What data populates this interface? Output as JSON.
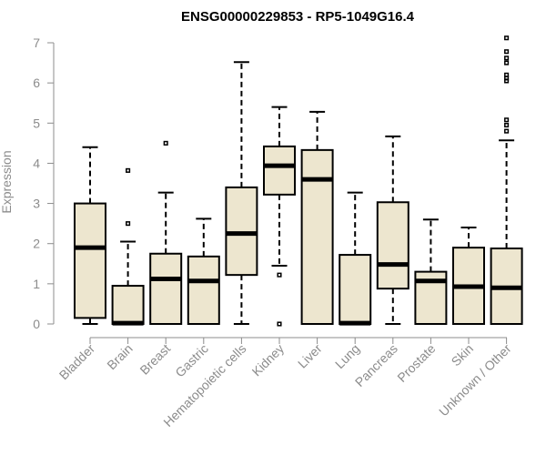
{
  "chart_data": {
    "type": "boxplot",
    "title": "ENSG00000229853 - RP5-1049G16.4",
    "xlabel": "",
    "ylabel": "Expression",
    "ylim": [
      0,
      7
    ],
    "yticks": [
      0,
      1,
      2,
      3,
      4,
      5,
      6,
      7
    ],
    "grid": false,
    "box_color": "#ede6cf",
    "categories": [
      "Bladder",
      "Brain",
      "Breast",
      "Gastric",
      "Hematopoietic cells",
      "Kidney",
      "Liver",
      "Lung",
      "Pancreas",
      "Prostate",
      "Skin",
      "Unknown / Other"
    ],
    "boxes": [
      {
        "category": "Bladder",
        "whisker_low": 0.0,
        "q1": 0.15,
        "median": 1.9,
        "q3": 3.0,
        "whisker_high": 4.4,
        "outliers": []
      },
      {
        "category": "Brain",
        "whisker_low": 0.0,
        "q1": 0.0,
        "median": 0.02,
        "q3": 0.95,
        "whisker_high": 2.05,
        "outliers": [
          2.5,
          3.82
        ]
      },
      {
        "category": "Breast",
        "whisker_low": 0.0,
        "q1": 0.0,
        "median": 1.12,
        "q3": 1.75,
        "whisker_high": 3.27,
        "outliers": [
          4.5
        ]
      },
      {
        "category": "Gastric",
        "whisker_low": 0.0,
        "q1": 0.0,
        "median": 1.07,
        "q3": 1.68,
        "whisker_high": 2.62,
        "outliers": []
      },
      {
        "category": "Hematopoietic cells",
        "whisker_low": 0.0,
        "q1": 1.22,
        "median": 2.25,
        "q3": 3.4,
        "whisker_high": 6.52,
        "outliers": []
      },
      {
        "category": "Kidney",
        "whisker_low": 1.45,
        "q1": 3.22,
        "median": 3.94,
        "q3": 4.42,
        "whisker_high": 5.4,
        "outliers": [
          0.0,
          1.22
        ]
      },
      {
        "category": "Liver",
        "whisker_low": 0.0,
        "q1": 0.0,
        "median": 3.6,
        "q3": 4.33,
        "whisker_high": 5.28,
        "outliers": []
      },
      {
        "category": "Lung",
        "whisker_low": 0.0,
        "q1": 0.0,
        "median": 0.02,
        "q3": 1.72,
        "whisker_high": 3.27,
        "outliers": []
      },
      {
        "category": "Pancreas",
        "whisker_low": 0.0,
        "q1": 0.88,
        "median": 1.48,
        "q3": 3.03,
        "whisker_high": 4.67,
        "outliers": []
      },
      {
        "category": "Prostate",
        "whisker_low": 0.0,
        "q1": 0.0,
        "median": 1.07,
        "q3": 1.3,
        "whisker_high": 2.6,
        "outliers": []
      },
      {
        "category": "Skin",
        "whisker_low": 0.0,
        "q1": 0.0,
        "median": 0.93,
        "q3": 1.9,
        "whisker_high": 2.4,
        "outliers": []
      },
      {
        "category": "Unknown / Other",
        "whisker_low": 0.0,
        "q1": 0.0,
        "median": 0.9,
        "q3": 1.88,
        "whisker_high": 4.57,
        "outliers": [
          4.8,
          4.95,
          5.08,
          6.05,
          6.12,
          6.2,
          6.5,
          6.62,
          6.78,
          7.12
        ]
      }
    ]
  }
}
